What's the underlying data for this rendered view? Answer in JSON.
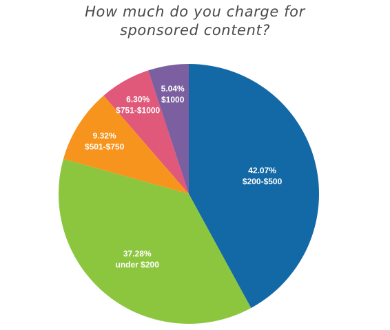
{
  "chart_data": {
    "type": "pie",
    "title": [
      "How much do you charge for",
      "sponsored content?"
    ],
    "slices": [
      {
        "label": "$200-$500",
        "value": 42.07,
        "value_label": "42.07%",
        "color": "#1368a6"
      },
      {
        "label": "under $200",
        "value": 37.28,
        "value_label": "37.28%",
        "color": "#8cc63f"
      },
      {
        "label": "$501-$750",
        "value": 9.32,
        "value_label": "9.32%",
        "color": "#f7941d"
      },
      {
        "label": "$751-$1000",
        "value": 6.3,
        "value_label": "6.30%",
        "color": "#e0587a"
      },
      {
        "label": "$1000",
        "value": 5.04,
        "value_label": "5.04%",
        "color": "#7b5fa0"
      }
    ],
    "start_angle_deg": 0,
    "direction": "clockwise",
    "legend": "none"
  }
}
